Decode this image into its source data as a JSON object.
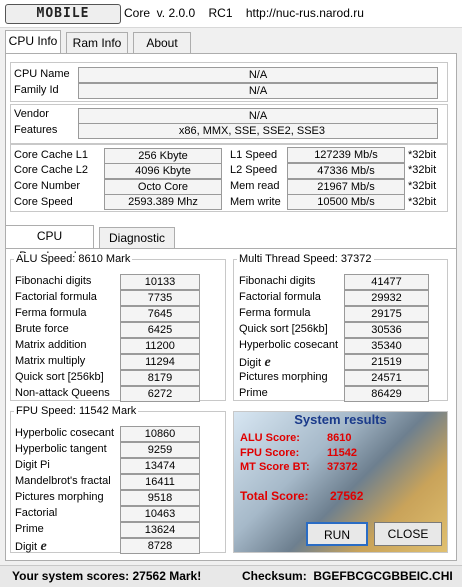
{
  "window": {
    "logo": "MOBILE",
    "title": "Core  v. 2.0.0    RC1    http://nuc-rus.narod.ru"
  },
  "tabs": [
    "CPU Info",
    "Ram Info",
    "About"
  ],
  "cpu": {
    "name_label": "CPU Name",
    "name": "N/A",
    "family_label": "Family Id",
    "family": "N/A",
    "vendor_label": "Vendor",
    "vendor": "N/A",
    "features_label": "Features",
    "features": "x86, MMX, SSE, SSE2, SSE3",
    "cache_l1_label": "Core Cache L1",
    "cache_l1": "256 Kbyte",
    "cache_l2_label": "Core Cache L2",
    "cache_l2": "4096 Kbyte",
    "cores_label": "Core Number",
    "cores": "Octo Core",
    "speed_label": "Core Speed",
    "speed": "2593.389 Mhz",
    "l1_speed_label": "L1 Speed",
    "l1_speed": "127239 Mb/s",
    "l2_speed_label": "L2 Speed",
    "l2_speed": "47336 Mb/s",
    "mem_read_label": "Mem read",
    "mem_read": "21967 Mb/s",
    "mem_write_label": "Mem write",
    "mem_write": "10500 Mb/s",
    "bit_note": "*32bit"
  },
  "bench_tabs": [
    "CPU Benchmark",
    "Diagnostic"
  ],
  "alu": {
    "title": "ALU Speed: 8610 Mark",
    "items": [
      {
        "label": "Fibonachi digits",
        "value": "10133"
      },
      {
        "label": "Factorial formula",
        "value": "7735"
      },
      {
        "label": "Ferma formula",
        "value": "7645"
      },
      {
        "label": "Brute force",
        "value": "6425"
      },
      {
        "label": "Matrix addition",
        "value": "11200"
      },
      {
        "label": "Matrix multiply",
        "value": "11294"
      },
      {
        "label": "Quick sort [256kb]",
        "value": "8179"
      },
      {
        "label": "Non-attack Queens",
        "value": "6272"
      }
    ]
  },
  "mt": {
    "title": "Multi Thread Speed: 37372",
    "items": [
      {
        "label": "Fibonachi digits",
        "value": "41477"
      },
      {
        "label": "Factorial formula",
        "value": "29932"
      },
      {
        "label": "Ferma formula",
        "value": "29175"
      },
      {
        "label": "Quick sort [256kb]",
        "value": "30536"
      },
      {
        "label": "Hyperbolic cosecant",
        "value": "35340"
      },
      {
        "label": "Digit",
        "value": "21519"
      },
      {
        "label": "Pictures morphing",
        "value": "24571"
      },
      {
        "label": "Prime",
        "value": "86429"
      }
    ]
  },
  "fpu": {
    "title": "FPU Speed: 11542 Mark",
    "items": [
      {
        "label": "Hyperbolic cosecant",
        "value": "10860"
      },
      {
        "label": "Hyperbolic tangent",
        "value": "9259"
      },
      {
        "label": "Digit Pi",
        "value": "13474"
      },
      {
        "label": "Mandelbrot's fractal",
        "value": "16411"
      },
      {
        "label": "Pictures morphing",
        "value": "9518"
      },
      {
        "label": "Factorial",
        "value": "10463"
      },
      {
        "label": "Prime",
        "value": "13624"
      },
      {
        "label": "Digit",
        "value": "8728"
      }
    ]
  },
  "results": {
    "title": "System results",
    "alu_label": "ALU Score:",
    "alu": "8610",
    "fpu_label": "FPU Score:",
    "fpu": "11542",
    "mt_label": "MT Score BT:",
    "mt": "37372",
    "total_label": "Total Score:",
    "total": "27562"
  },
  "buttons": {
    "run": "RUN",
    "close": "CLOSE"
  },
  "status": {
    "scores": "Your system scores: 27562 Mark!",
    "checksum": "Checksum:  BGEFBCGCGBBEIC.CHI"
  },
  "colors": {
    "accent": "#e00000",
    "title_blue": "#1a3a8a"
  }
}
